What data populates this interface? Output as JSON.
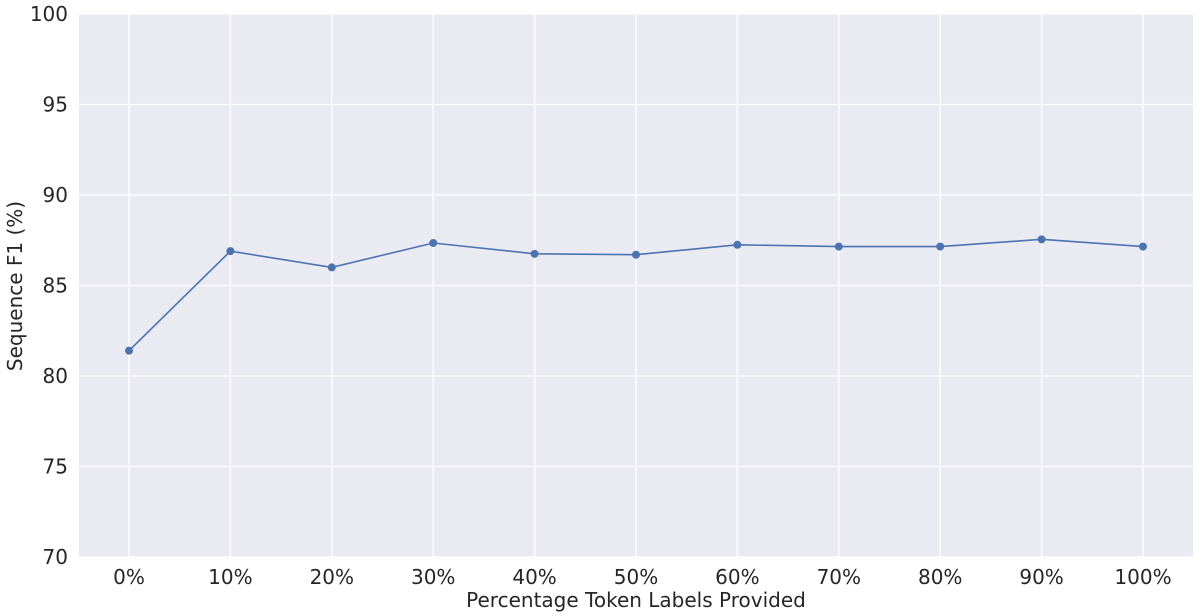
{
  "chart_data": {
    "type": "line",
    "title": "",
    "xlabel": "Percentage Token Labels Provided",
    "ylabel": "Sequence F1 (%)",
    "categories": [
      "0%",
      "10%",
      "20%",
      "30%",
      "40%",
      "50%",
      "60%",
      "70%",
      "80%",
      "90%",
      "100%"
    ],
    "series": [
      {
        "values": [
          81.4,
          86.9,
          86.0,
          87.35,
          86.75,
          86.7,
          87.25,
          87.15,
          87.15,
          87.55,
          87.15
        ],
        "color": "#4c72b0"
      }
    ],
    "ylim": [
      70,
      100
    ],
    "yticks": [
      70,
      75,
      80,
      85,
      90,
      95,
      100
    ],
    "grid": true,
    "legend": "none",
    "background": "#eaeaf2"
  }
}
